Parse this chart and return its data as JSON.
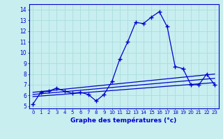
{
  "hours": [
    0,
    1,
    2,
    3,
    4,
    5,
    6,
    7,
    8,
    9,
    10,
    11,
    12,
    13,
    14,
    15,
    16,
    17,
    18,
    19,
    20,
    21,
    22,
    23
  ],
  "temps": [
    5.2,
    6.3,
    6.4,
    6.7,
    6.4,
    6.2,
    6.3,
    6.1,
    5.5,
    6.1,
    7.3,
    9.4,
    11.0,
    12.8,
    12.7,
    13.3,
    13.8,
    12.4,
    8.7,
    8.5,
    7.0,
    7.0,
    8.0,
    7.0
  ],
  "line_color": "#0000cc",
  "marker": "+",
  "marker_size": 4,
  "bg_color": "#c8eef0",
  "grid_color": "#aadddd",
  "xlabel": "Graphe des températures (°c)",
  "ylabel_ticks": [
    5,
    6,
    7,
    8,
    9,
    10,
    11,
    12,
    13,
    14
  ],
  "xlim": [
    -0.5,
    23.5
  ],
  "ylim": [
    4.8,
    14.5
  ],
  "trend_lines": [
    {
      "x": [
        0,
        23
      ],
      "y": [
        5.9,
        7.2
      ]
    },
    {
      "x": [
        0,
        23
      ],
      "y": [
        6.1,
        7.6
      ]
    },
    {
      "x": [
        0,
        23
      ],
      "y": [
        6.3,
        8.0
      ]
    }
  ]
}
